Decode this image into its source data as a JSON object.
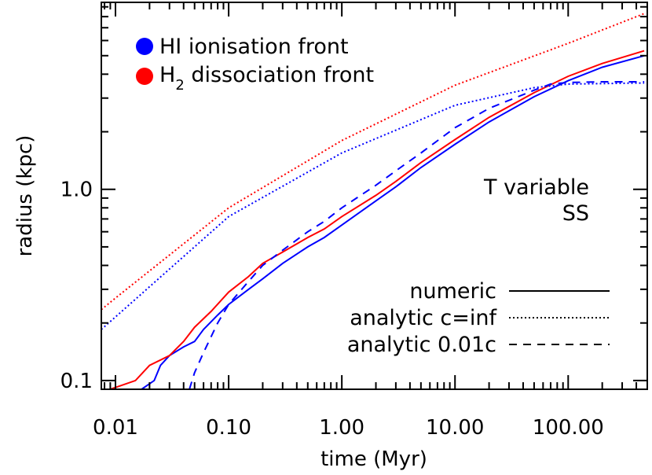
{
  "chart_data": {
    "type": "line",
    "xlabel": "time (Myr)",
    "ylabel": "radius (kpc)",
    "xscale": "log",
    "yscale": "log",
    "xlim": [
      0.0075,
      500
    ],
    "ylim": [
      0.09,
      9.5
    ],
    "x_ticks": [
      0.01,
      0.1,
      1,
      10,
      100
    ],
    "x_tick_labels": [
      "0.01",
      "0.10",
      "1.00",
      "10.00",
      "100.00"
    ],
    "y_ticks": [
      0.1,
      1.0
    ],
    "y_tick_labels": [
      "0.1",
      "1.0"
    ],
    "grid": false,
    "legend_markers": [
      {
        "label": "HI ionisation front",
        "color": "#0000ff"
      },
      {
        "label_main": "H",
        "label_sub": "2",
        "label_rest": " dissociation front",
        "color": "#ff0000"
      }
    ],
    "legend_styles": [
      {
        "label": "numeric",
        "dash": "solid"
      },
      {
        "label": "analytic c=inf",
        "dash": "dotted"
      },
      {
        "label": "analytic 0.01c",
        "dash": "dashed"
      }
    ],
    "annotations": [
      "T variable",
      "SS"
    ],
    "colors": {
      "HI": "#0000ff",
      "H2": "#ff0000"
    },
    "series": [
      {
        "color": "#0000ff",
        "dash": "solid",
        "points": [
          [
            0.017,
            0.09
          ],
          [
            0.022,
            0.1
          ],
          [
            0.025,
            0.12
          ],
          [
            0.03,
            0.135
          ],
          [
            0.04,
            0.15
          ],
          [
            0.05,
            0.16
          ],
          [
            0.06,
            0.185
          ],
          [
            0.08,
            0.22
          ],
          [
            0.1,
            0.25
          ],
          [
            0.15,
            0.3
          ],
          [
            0.2,
            0.34
          ],
          [
            0.3,
            0.41
          ],
          [
            0.5,
            0.5
          ],
          [
            0.7,
            0.56
          ],
          [
            1.0,
            0.65
          ],
          [
            2.0,
            0.87
          ],
          [
            3.0,
            1.03
          ],
          [
            5.0,
            1.3
          ],
          [
            10.0,
            1.72
          ],
          [
            20.0,
            2.25
          ],
          [
            50.0,
            3.05
          ],
          [
            100.0,
            3.7
          ],
          [
            200.0,
            4.35
          ],
          [
            470.0,
            5.0
          ]
        ]
      },
      {
        "color": "#ff0000",
        "dash": "solid",
        "points": [
          [
            0.008,
            0.088
          ],
          [
            0.01,
            0.092
          ],
          [
            0.015,
            0.1
          ],
          [
            0.02,
            0.12
          ],
          [
            0.03,
            0.135
          ],
          [
            0.04,
            0.16
          ],
          [
            0.05,
            0.19
          ],
          [
            0.07,
            0.23
          ],
          [
            0.1,
            0.29
          ],
          [
            0.15,
            0.35
          ],
          [
            0.2,
            0.41
          ],
          [
            0.3,
            0.47
          ],
          [
            0.5,
            0.56
          ],
          [
            0.7,
            0.62
          ],
          [
            1.0,
            0.72
          ],
          [
            2.0,
            0.93
          ],
          [
            3.0,
            1.1
          ],
          [
            5.0,
            1.38
          ],
          [
            10.0,
            1.82
          ],
          [
            20.0,
            2.38
          ],
          [
            50.0,
            3.2
          ],
          [
            100.0,
            3.9
          ],
          [
            200.0,
            4.55
          ],
          [
            470.0,
            5.3
          ]
        ]
      },
      {
        "color": "#0000ff",
        "dash": "dotted",
        "points": [
          [
            0.0075,
            0.185
          ],
          [
            0.01,
            0.215
          ],
          [
            0.1,
            0.72
          ],
          [
            1.0,
            1.55
          ],
          [
            10.0,
            2.75
          ],
          [
            50.0,
            3.4
          ],
          [
            100.0,
            3.55
          ],
          [
            470.0,
            3.6
          ]
        ]
      },
      {
        "color": "#ff0000",
        "dash": "dotted",
        "points": [
          [
            0.0075,
            0.235
          ],
          [
            0.01,
            0.27
          ],
          [
            0.1,
            0.8
          ],
          [
            1.0,
            1.8
          ],
          [
            10.0,
            3.5
          ],
          [
            100.0,
            5.8
          ],
          [
            470.0,
            8.3
          ]
        ]
      },
      {
        "color": "#0000ff",
        "dash": "dashed",
        "points": [
          [
            0.045,
            0.09
          ],
          [
            0.05,
            0.11
          ],
          [
            0.06,
            0.14
          ],
          [
            0.08,
            0.2
          ],
          [
            0.1,
            0.25
          ],
          [
            0.15,
            0.33
          ],
          [
            0.2,
            0.4
          ],
          [
            0.3,
            0.48
          ],
          [
            0.5,
            0.6
          ],
          [
            0.7,
            0.68
          ],
          [
            1.0,
            0.8
          ],
          [
            2.0,
            1.05
          ],
          [
            3.0,
            1.25
          ],
          [
            5.0,
            1.55
          ],
          [
            10.0,
            2.1
          ],
          [
            20.0,
            2.65
          ],
          [
            50.0,
            3.3
          ],
          [
            70.0,
            3.55
          ],
          [
            100.0,
            3.62
          ],
          [
            200.0,
            3.65
          ],
          [
            470.0,
            3.65
          ]
        ]
      }
    ]
  }
}
